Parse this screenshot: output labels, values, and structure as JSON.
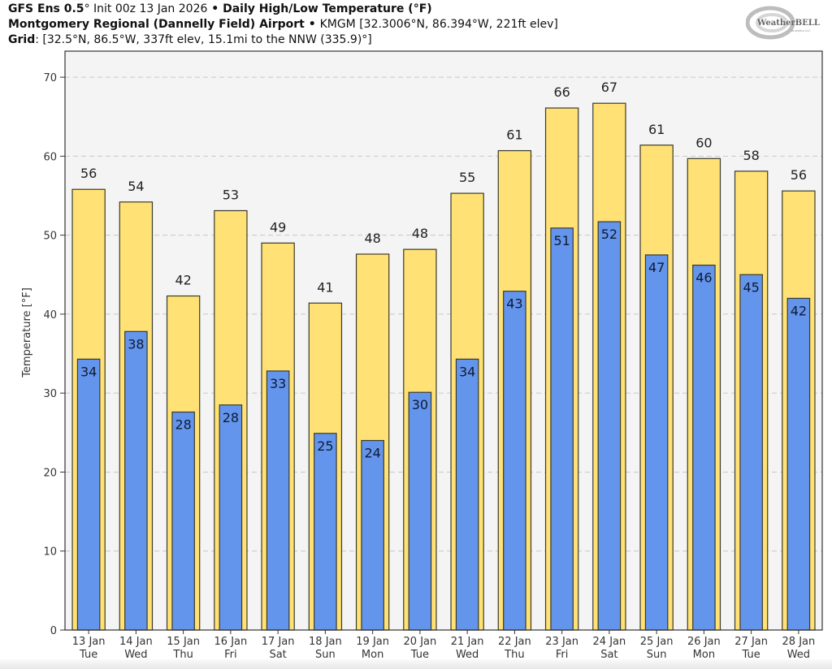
{
  "header": {
    "line1_model": "GFS Ens 0.5",
    "line1_degree": "°",
    "line1_init": " Init 00z 13 Jan 2026",
    "line1_sep": " • ",
    "line1_title": "Daily High/Low Temperature (°F)",
    "line2_station": "Montgomery Regional (Dannelly Field) Airport",
    "line2_sep": " • ",
    "line2_details": "KMGM [32.3006°N, 86.394°W, 221ft elev]",
    "line3_label": "Grid",
    "line3_details": ": [32.5°N, 86.5°W, 337ft elev, 15.1mi to the NNW (335.9)°]"
  },
  "logo": {
    "text_main": "WeatherBELL",
    "text_sub": "Analytics LLC"
  },
  "colors": {
    "high_bar": "#ffe175",
    "low_bar": "#6495ed",
    "bar_edge": "#3a3a2a",
    "plot_bg": "#f4f4f4",
    "grid": "#c8c8c8"
  },
  "chart_data": {
    "type": "bar",
    "title": "Daily High/Low Temperature (°F)",
    "xlabel": "",
    "ylabel": "Temperature [°F]",
    "ylim": [
      0,
      73.3
    ],
    "yticks": [
      0,
      10,
      20,
      30,
      40,
      50,
      60,
      70
    ],
    "grid": true,
    "categories": [
      [
        "13 Jan",
        "Tue"
      ],
      [
        "14 Jan",
        "Wed"
      ],
      [
        "15 Jan",
        "Thu"
      ],
      [
        "16 Jan",
        "Fri"
      ],
      [
        "17 Jan",
        "Sat"
      ],
      [
        "18 Jan",
        "Sun"
      ],
      [
        "19 Jan",
        "Mon"
      ],
      [
        "20 Jan",
        "Tue"
      ],
      [
        "21 Jan",
        "Wed"
      ],
      [
        "22 Jan",
        "Thu"
      ],
      [
        "23 Jan",
        "Fri"
      ],
      [
        "24 Jan",
        "Sat"
      ],
      [
        "25 Jan",
        "Sun"
      ],
      [
        "26 Jan",
        "Mon"
      ],
      [
        "27 Jan",
        "Tue"
      ],
      [
        "28 Jan",
        "Wed"
      ]
    ],
    "series": [
      {
        "name": "High",
        "values": [
          55.8,
          54.2,
          42.3,
          53.1,
          49.0,
          41.4,
          47.6,
          48.2,
          55.3,
          60.7,
          66.1,
          66.7,
          61.4,
          59.7,
          58.1,
          55.6
        ],
        "labels": [
          "56",
          "54",
          "42",
          "53",
          "49",
          "41",
          "48",
          "48",
          "55",
          "61",
          "66",
          "67",
          "61",
          "60",
          "58",
          "56"
        ]
      },
      {
        "name": "Low",
        "values": [
          34.3,
          37.8,
          27.6,
          28.5,
          32.8,
          24.9,
          24.0,
          30.1,
          34.3,
          42.9,
          50.9,
          51.7,
          47.5,
          46.2,
          45.0,
          42.0
        ],
        "labels": [
          "34",
          "38",
          "28",
          "28",
          "33",
          "25",
          "24",
          "30",
          "34",
          "43",
          "51",
          "52",
          "47",
          "46",
          "45",
          "42"
        ]
      }
    ]
  }
}
